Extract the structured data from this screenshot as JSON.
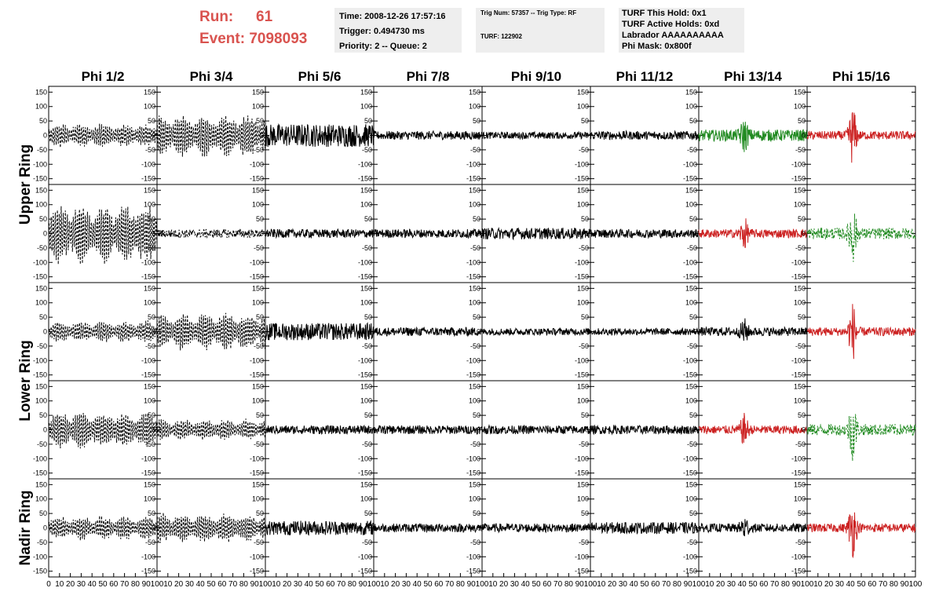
{
  "header": {
    "run_label": "Run:",
    "run_value": "61",
    "event_label": "Event:",
    "event_value": "7098093",
    "time": "Time: 2008-12-26 17:57:16",
    "trigger": "Trigger: 0.494730 ms",
    "priority": "Priority: 2 -- Queue: 2",
    "trig_num": "Trig Num: 57357 -- Trig Type: RF",
    "turf_num": "TURF: 122902",
    "turf_hold": "TURF This Hold: 0x1",
    "turf_active": "TURF Active Holds: 0xd",
    "labrador": "Labrador AAAAAAAAAA",
    "phi_mask": "Phi Mask: 0x800f"
  },
  "colors": {
    "header_red": "#d9534f",
    "trace_black": "#000000",
    "trace_red": "#cc2222",
    "trace_green": "#228b22",
    "box_bg": "#eeeeee"
  },
  "chart_data": {
    "type": "line",
    "columns": [
      "Phi 1/2",
      "Phi 3/4",
      "Phi 5/6",
      "Phi 7/8",
      "Phi 9/10",
      "Phi 11/12",
      "Phi 13/14",
      "Phi 15/16"
    ],
    "rows": [
      "Upper Ring",
      "Lower Ring",
      "Nadir Ring"
    ],
    "ylim": [
      -170,
      170
    ],
    "xlim": [
      0,
      100
    ],
    "yticks": [
      -150,
      -100,
      -50,
      0,
      50,
      100,
      150
    ],
    "xticks": [
      0,
      10,
      20,
      30,
      40,
      50,
      60,
      70,
      80,
      90,
      100
    ],
    "panels": [
      [
        "dash",
        45,
        "black"
      ],
      [
        "dash",
        80,
        "black"
      ],
      [
        "solid",
        40,
        "black"
      ],
      [
        "solid",
        15,
        "black"
      ],
      [
        "solid",
        12,
        "black"
      ],
      [
        "solid",
        15,
        "black"
      ],
      [
        "solid",
        20,
        "green",
        45
      ],
      [
        "solid",
        15,
        "red",
        90
      ],
      [
        "dash",
        110,
        "black"
      ],
      [
        "dash",
        15,
        "black"
      ],
      [
        "solid",
        15,
        "black"
      ],
      [
        "solid",
        15,
        "black"
      ],
      [
        "solid",
        20,
        "black"
      ],
      [
        "solid",
        15,
        "black"
      ],
      [
        "solid",
        15,
        "red",
        45
      ],
      [
        "dash",
        20,
        "green",
        90
      ],
      [
        "dash",
        40,
        "black"
      ],
      [
        "dash",
        70,
        "black"
      ],
      [
        "solid",
        30,
        "black"
      ],
      [
        "solid",
        15,
        "black"
      ],
      [
        "solid",
        12,
        "black"
      ],
      [
        "solid",
        12,
        "black"
      ],
      [
        "solid",
        15,
        "black",
        35
      ],
      [
        "solid",
        15,
        "red",
        90
      ],
      [
        "dash",
        70,
        "black"
      ],
      [
        "dash",
        40,
        "black"
      ],
      [
        "solid",
        15,
        "black"
      ],
      [
        "solid",
        15,
        "black"
      ],
      [
        "solid",
        15,
        "black"
      ],
      [
        "solid",
        15,
        "black"
      ],
      [
        "solid",
        15,
        "red",
        45
      ],
      [
        "dash",
        20,
        "green",
        90
      ],
      [
        "dash",
        45,
        "black"
      ],
      [
        "dash",
        55,
        "black"
      ],
      [
        "solid",
        25,
        "black"
      ],
      [
        "solid",
        15,
        "black"
      ],
      [
        "solid",
        15,
        "black"
      ],
      [
        "solid",
        20,
        "black"
      ],
      [
        "solid",
        15,
        "black",
        35
      ],
      [
        "solid",
        15,
        "red",
        90
      ]
    ]
  }
}
